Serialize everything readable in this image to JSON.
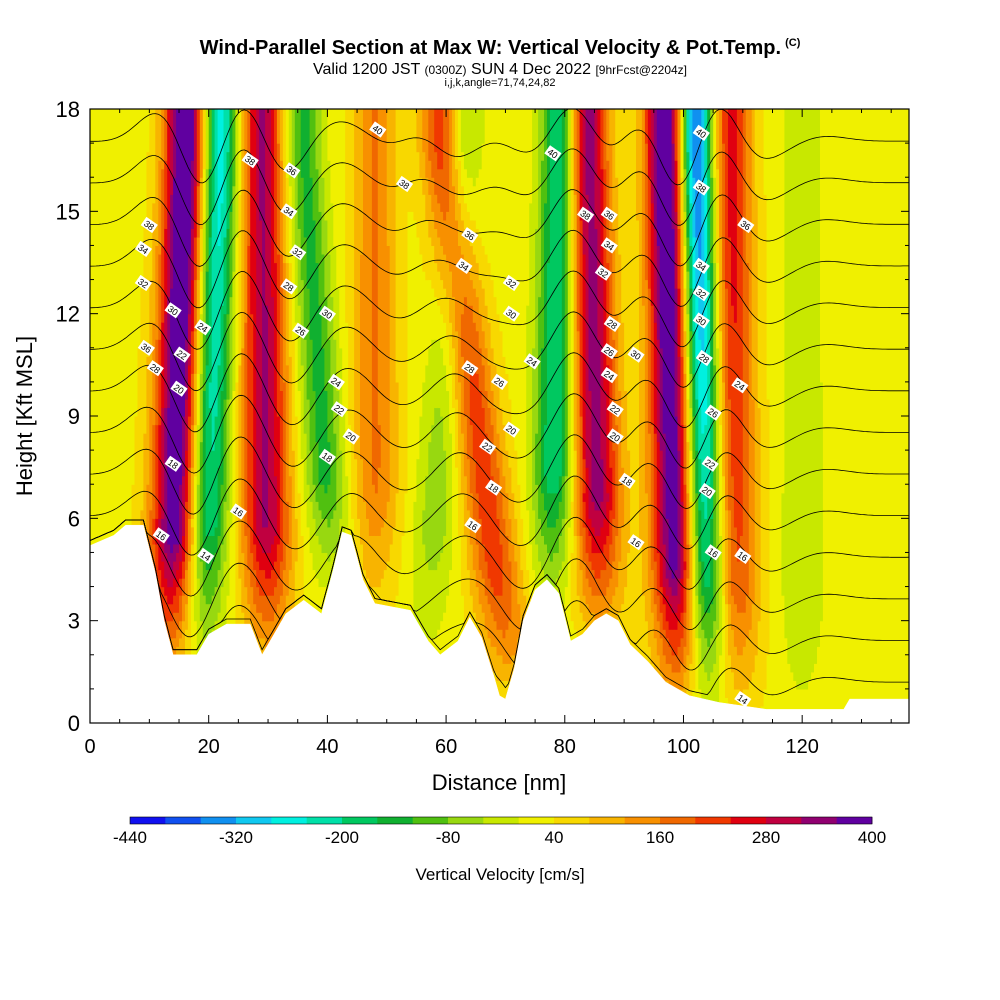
{
  "header": {
    "title_main": "Wind-Parallel Section at Max W: Vertical Velocity & Pot.Temp.",
    "title_copyright": "(C)",
    "subtitle_valid": "Valid 1200 JST",
    "subtitle_utc": "(0300Z)",
    "subtitle_date": "SUN 4 Dec 2022",
    "subtitle_fcst": "[9hrFcst@2204z]",
    "subtitle_indices": "i,j,k,angle=71,74,24,82"
  },
  "chart_data": {
    "type": "heatmap",
    "xlabel": "Distance [nm]",
    "ylabel": "Height [Kft MSL]",
    "xlim": [
      0,
      138
    ],
    "ylim": [
      0,
      18
    ],
    "x_ticks": [
      0,
      20,
      40,
      60,
      80,
      100,
      120
    ],
    "y_ticks": [
      0,
      3,
      6,
      9,
      12,
      15,
      18
    ],
    "grid": false,
    "colorbar": {
      "label": "Vertical Velocity [cm/s]",
      "tick_labels": [
        "-440",
        "-320",
        "-200",
        "-80",
        "40",
        "160",
        "280",
        "400"
      ],
      "colors": [
        "#1010f0",
        "#1050f0",
        "#1090f0",
        "#10c8f0",
        "#00f0e0",
        "#00e0a8",
        "#00c860",
        "#10b030",
        "#50c010",
        "#98d810",
        "#c8e800",
        "#f0f000",
        "#f8d800",
        "#f8b400",
        "#f89000",
        "#f06800",
        "#f03800",
        "#e00010",
        "#c00040",
        "#900070",
        "#6000a0"
      ]
    },
    "updraft_bands": [
      {
        "x_base": 14,
        "x_top": 16,
        "w": 420
      },
      {
        "x_base": 30,
        "x_top": 29,
        "w": 300
      },
      {
        "x_base": 48,
        "x_top": 48,
        "w": 140
      },
      {
        "x_base": 71,
        "x_top": 59,
        "w": 200
      },
      {
        "x_base": 86,
        "x_top": 84,
        "w": 320
      },
      {
        "x_base": 100,
        "x_top": 97,
        "w": 440
      },
      {
        "x_base": 108,
        "x_top": 108,
        "w": 240
      }
    ],
    "downdraft_bands": [
      {
        "x_base": 18,
        "x_top": 22,
        "w": -300
      },
      {
        "x_base": 42,
        "x_top": 36,
        "w": -160
      },
      {
        "x_base": 56,
        "x_top": 63,
        "w": -90
      },
      {
        "x_base": 78,
        "x_top": 79,
        "w": -240
      },
      {
        "x_base": 104,
        "x_top": 102,
        "w": -440
      },
      {
        "x_base": 120,
        "x_top": 120,
        "w": -60
      }
    ],
    "terrain": [
      {
        "x": 0,
        "h": 5.2
      },
      {
        "x": 4,
        "h": 5.5
      },
      {
        "x": 6,
        "h": 5.8
      },
      {
        "x": 9,
        "h": 5.8
      },
      {
        "x": 11,
        "h": 4.4
      },
      {
        "x": 12.5,
        "h": 3.0
      },
      {
        "x": 14,
        "h": 2.0
      },
      {
        "x": 18,
        "h": 2.0
      },
      {
        "x": 20,
        "h": 2.6
      },
      {
        "x": 23,
        "h": 2.9
      },
      {
        "x": 27,
        "h": 2.9
      },
      {
        "x": 29,
        "h": 2.0
      },
      {
        "x": 31,
        "h": 2.6
      },
      {
        "x": 33,
        "h": 3.2
      },
      {
        "x": 36,
        "h": 3.6
      },
      {
        "x": 39,
        "h": 3.2
      },
      {
        "x": 41,
        "h": 4.5
      },
      {
        "x": 42.5,
        "h": 5.6
      },
      {
        "x": 44,
        "h": 5.5
      },
      {
        "x": 46,
        "h": 4.2
      },
      {
        "x": 48,
        "h": 3.5
      },
      {
        "x": 51,
        "h": 3.4
      },
      {
        "x": 54,
        "h": 3.3
      },
      {
        "x": 57,
        "h": 2.4
      },
      {
        "x": 59,
        "h": 2.0
      },
      {
        "x": 62,
        "h": 2.4
      },
      {
        "x": 64,
        "h": 3.1
      },
      {
        "x": 66,
        "h": 2.5
      },
      {
        "x": 68,
        "h": 1.4
      },
      {
        "x": 69,
        "h": 0.8
      },
      {
        "x": 70,
        "h": 0.7
      },
      {
        "x": 71.5,
        "h": 1.6
      },
      {
        "x": 73,
        "h": 3.0
      },
      {
        "x": 75,
        "h": 3.9
      },
      {
        "x": 77,
        "h": 4.2
      },
      {
        "x": 79,
        "h": 3.8
      },
      {
        "x": 81,
        "h": 2.4
      },
      {
        "x": 83,
        "h": 2.6
      },
      {
        "x": 85,
        "h": 3.0
      },
      {
        "x": 87,
        "h": 3.2
      },
      {
        "x": 89,
        "h": 3.0
      },
      {
        "x": 91,
        "h": 2.3
      },
      {
        "x": 94,
        "h": 1.8
      },
      {
        "x": 97,
        "h": 1.2
      },
      {
        "x": 101,
        "h": 0.8
      },
      {
        "x": 106,
        "h": 0.6
      },
      {
        "x": 110,
        "h": 0.5
      },
      {
        "x": 114,
        "h": 0.4
      },
      {
        "x": 127,
        "h": 0.4
      },
      {
        "x": 128,
        "h": 0.7
      },
      {
        "x": 138,
        "h": 0.7
      }
    ],
    "theta_contours": [
      14,
      16,
      18,
      20,
      22,
      24,
      26,
      28,
      30,
      32,
      34,
      36,
      38,
      40
    ],
    "contour_labels": [
      {
        "x": 10,
        "y": 14.6,
        "text": "38"
      },
      {
        "x": 9,
        "y": 13.9,
        "text": "34"
      },
      {
        "x": 9,
        "y": 12.9,
        "text": "32"
      },
      {
        "x": 14,
        "y": 12.1,
        "text": "30"
      },
      {
        "x": 19,
        "y": 11.6,
        "text": "24"
      },
      {
        "x": 9.5,
        "y": 11.0,
        "text": "36"
      },
      {
        "x": 15.5,
        "y": 10.8,
        "text": "22"
      },
      {
        "x": 11,
        "y": 10.4,
        "text": "28"
      },
      {
        "x": 15,
        "y": 9.8,
        "text": "20"
      },
      {
        "x": 14,
        "y": 7.6,
        "text": "18"
      },
      {
        "x": 12,
        "y": 5.5,
        "text": "16"
      },
      {
        "x": 19.5,
        "y": 4.9,
        "text": "14"
      },
      {
        "x": 27,
        "y": 16.5,
        "text": "38"
      },
      {
        "x": 34,
        "y": 16.2,
        "text": "36"
      },
      {
        "x": 33.5,
        "y": 15.0,
        "text": "34"
      },
      {
        "x": 35,
        "y": 13.8,
        "text": "32"
      },
      {
        "x": 33.5,
        "y": 12.8,
        "text": "28"
      },
      {
        "x": 40,
        "y": 12.0,
        "text": "30"
      },
      {
        "x": 35.5,
        "y": 11.5,
        "text": "26"
      },
      {
        "x": 41.5,
        "y": 10.0,
        "text": "24"
      },
      {
        "x": 42,
        "y": 9.2,
        "text": "22"
      },
      {
        "x": 44,
        "y": 8.4,
        "text": "20"
      },
      {
        "x": 40,
        "y": 7.8,
        "text": "18"
      },
      {
        "x": 25,
        "y": 6.2,
        "text": "16"
      },
      {
        "x": 48.5,
        "y": 17.4,
        "text": "40"
      },
      {
        "x": 53,
        "y": 15.8,
        "text": "38"
      },
      {
        "x": 64,
        "y": 14.3,
        "text": "36"
      },
      {
        "x": 63,
        "y": 13.4,
        "text": "34"
      },
      {
        "x": 71,
        "y": 12.9,
        "text": "32"
      },
      {
        "x": 71,
        "y": 12.0,
        "text": "30"
      },
      {
        "x": 64,
        "y": 10.4,
        "text": "28"
      },
      {
        "x": 69,
        "y": 10.0,
        "text": "26"
      },
      {
        "x": 74.5,
        "y": 10.6,
        "text": "24"
      },
      {
        "x": 67,
        "y": 8.1,
        "text": "22"
      },
      {
        "x": 71,
        "y": 8.6,
        "text": "20"
      },
      {
        "x": 68,
        "y": 6.9,
        "text": "18"
      },
      {
        "x": 64.5,
        "y": 5.8,
        "text": "16"
      },
      {
        "x": 78,
        "y": 16.7,
        "text": "40"
      },
      {
        "x": 83.5,
        "y": 14.9,
        "text": "38"
      },
      {
        "x": 87.5,
        "y": 14.9,
        "text": "36"
      },
      {
        "x": 87.5,
        "y": 14.0,
        "text": "34"
      },
      {
        "x": 86.5,
        "y": 13.2,
        "text": "32"
      },
      {
        "x": 88,
        "y": 11.7,
        "text": "28"
      },
      {
        "x": 87.5,
        "y": 10.9,
        "text": "26"
      },
      {
        "x": 92,
        "y": 10.8,
        "text": "30"
      },
      {
        "x": 87.5,
        "y": 10.2,
        "text": "24"
      },
      {
        "x": 88.5,
        "y": 9.2,
        "text": "22"
      },
      {
        "x": 88.5,
        "y": 8.4,
        "text": "20"
      },
      {
        "x": 90.5,
        "y": 7.1,
        "text": "18"
      },
      {
        "x": 92,
        "y": 5.3,
        "text": "16"
      },
      {
        "x": 103,
        "y": 17.3,
        "text": "40"
      },
      {
        "x": 103,
        "y": 15.7,
        "text": "38"
      },
      {
        "x": 110.5,
        "y": 14.6,
        "text": "36"
      },
      {
        "x": 103,
        "y": 13.4,
        "text": "34"
      },
      {
        "x": 103,
        "y": 12.6,
        "text": "32"
      },
      {
        "x": 103,
        "y": 11.8,
        "text": "30"
      },
      {
        "x": 103.5,
        "y": 10.7,
        "text": "28"
      },
      {
        "x": 109.5,
        "y": 9.9,
        "text": "24"
      },
      {
        "x": 105,
        "y": 9.1,
        "text": "26"
      },
      {
        "x": 104.5,
        "y": 7.6,
        "text": "22"
      },
      {
        "x": 104,
        "y": 6.8,
        "text": "20"
      },
      {
        "x": 105,
        "y": 5.0,
        "text": "16"
      },
      {
        "x": 110,
        "y": 4.9,
        "text": "16"
      },
      {
        "x": 110,
        "y": 0.7,
        "text": "14"
      }
    ]
  }
}
